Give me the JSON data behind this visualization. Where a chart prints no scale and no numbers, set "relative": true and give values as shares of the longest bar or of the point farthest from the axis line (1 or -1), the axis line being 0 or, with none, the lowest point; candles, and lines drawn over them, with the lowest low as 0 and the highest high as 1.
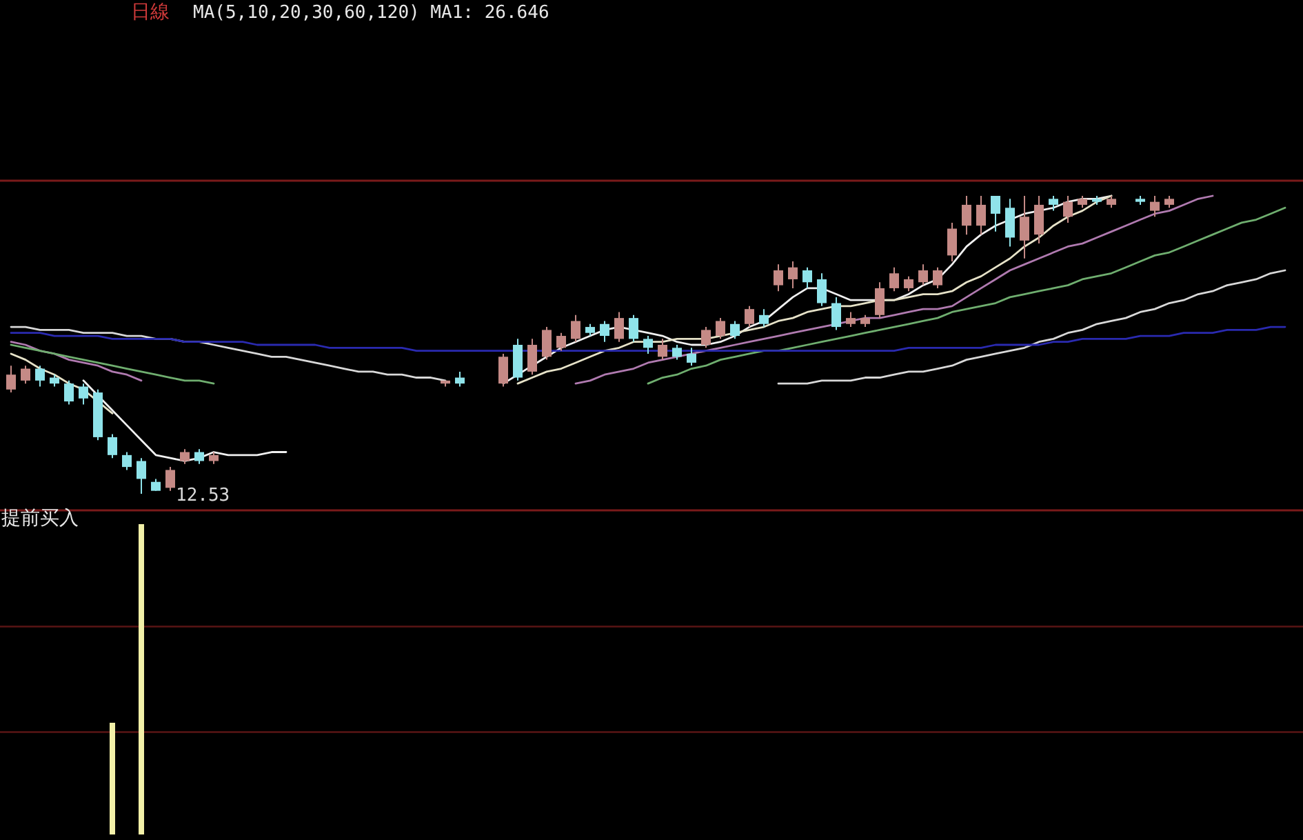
{
  "chart_data": [
    {
      "type": "candlestick",
      "title": "日線",
      "subtitle": "MA(5,10,20,30,60,120)  MA1: 26.646",
      "relative": true,
      "categories": [
        null,
        null,
        null,
        null,
        null,
        null,
        null,
        null,
        null,
        null,
        null,
        null,
        null,
        null,
        null,
        null,
        null,
        null,
        null,
        null,
        null,
        null,
        null,
        null,
        null,
        null,
        null,
        null,
        null,
        null,
        null,
        null,
        null,
        null,
        null,
        null,
        null,
        null,
        null,
        null,
        null,
        null,
        null,
        null,
        null,
        null,
        null,
        null,
        null,
        null,
        null,
        null,
        null,
        null,
        null,
        null,
        null,
        null,
        null,
        null,
        null,
        null,
        null,
        null,
        null,
        null,
        null,
        null,
        null,
        null,
        null,
        null,
        null,
        null,
        null,
        null,
        null,
        null,
        null,
        null,
        null,
        null,
        null,
        null,
        null,
        null,
        null,
        null,
        null
      ],
      "ohlc": [
        [
          0.35,
          0.43,
          0.34,
          0.4
        ],
        [
          0.38,
          0.43,
          0.37,
          0.42
        ],
        [
          0.42,
          0.43,
          0.36,
          0.38
        ],
        [
          0.39,
          0.4,
          0.36,
          0.37
        ],
        [
          0.37,
          0.38,
          0.3,
          0.31
        ],
        [
          0.36,
          0.37,
          0.3,
          0.32
        ],
        [
          0.34,
          0.35,
          0.18,
          0.19
        ],
        [
          0.19,
          0.2,
          0.12,
          0.13
        ],
        [
          0.13,
          0.14,
          0.08,
          0.09
        ],
        [
          0.11,
          0.12,
          0.0,
          0.05
        ],
        [
          0.04,
          0.05,
          0.01,
          0.01
        ],
        [
          0.02,
          0.09,
          0.01,
          0.08
        ],
        [
          0.11,
          0.15,
          0.1,
          0.14
        ],
        [
          0.14,
          0.15,
          0.1,
          0.11
        ],
        [
          0.11,
          0.14,
          0.1,
          0.13
        ],
        null,
        null,
        null,
        null,
        null,
        null,
        null,
        null,
        null,
        null,
        null,
        null,
        null,
        null,
        null,
        [
          0.37,
          0.38,
          0.36,
          0.38
        ],
        [
          0.39,
          0.41,
          0.36,
          0.37
        ],
        null,
        null,
        [
          0.37,
          0.47,
          0.36,
          0.46
        ],
        [
          0.5,
          0.52,
          0.38,
          0.39
        ],
        [
          0.41,
          0.52,
          0.4,
          0.5
        ],
        [
          0.46,
          0.56,
          0.45,
          0.55
        ],
        [
          0.49,
          0.54,
          0.48,
          0.53
        ],
        [
          0.52,
          0.6,
          0.51,
          0.58
        ],
        [
          0.56,
          0.57,
          0.53,
          0.54
        ],
        [
          0.57,
          0.58,
          0.51,
          0.53
        ],
        [
          0.52,
          0.61,
          0.51,
          0.59
        ],
        [
          0.59,
          0.6,
          0.51,
          0.52
        ],
        [
          0.52,
          0.53,
          0.47,
          0.49
        ],
        [
          0.46,
          0.52,
          0.45,
          0.5
        ],
        [
          0.49,
          0.5,
          0.45,
          0.46
        ],
        [
          0.47,
          0.49,
          0.43,
          0.44
        ],
        [
          0.5,
          0.56,
          0.49,
          0.55
        ],
        [
          0.53,
          0.59,
          0.52,
          0.58
        ],
        [
          0.57,
          0.58,
          0.52,
          0.53
        ],
        [
          0.57,
          0.63,
          0.56,
          0.62
        ],
        [
          0.6,
          0.62,
          0.56,
          0.57
        ],
        [
          0.7,
          0.77,
          0.68,
          0.75
        ],
        [
          0.72,
          0.78,
          0.69,
          0.76
        ],
        [
          0.75,
          0.76,
          0.69,
          0.71
        ],
        [
          0.72,
          0.74,
          0.63,
          0.64
        ],
        [
          0.64,
          0.66,
          0.55,
          0.56
        ],
        [
          0.57,
          0.61,
          0.56,
          0.59
        ],
        [
          0.57,
          0.6,
          0.56,
          0.59
        ],
        [
          0.6,
          0.71,
          0.59,
          0.69
        ],
        [
          0.69,
          0.76,
          0.68,
          0.74
        ],
        [
          0.69,
          0.73,
          0.68,
          0.72
        ],
        [
          0.71,
          0.77,
          0.7,
          0.75
        ],
        [
          0.7,
          0.76,
          0.69,
          0.75
        ],
        [
          0.8,
          0.91,
          0.78,
          0.89
        ],
        [
          0.9,
          1.0,
          0.87,
          0.97
        ],
        [
          0.9,
          1.0,
          0.87,
          0.97
        ],
        [
          1.0,
          1.0,
          0.88,
          0.94
        ],
        [
          0.96,
          0.99,
          0.83,
          0.86
        ],
        [
          0.85,
          1.0,
          0.79,
          0.93
        ],
        [
          0.87,
          1.0,
          0.84,
          0.97
        ],
        [
          0.99,
          1.0,
          0.95,
          0.97
        ],
        [
          0.93,
          1.0,
          0.91,
          0.98
        ],
        [
          0.97,
          1.0,
          0.96,
          0.99
        ],
        [
          0.99,
          1.0,
          0.97,
          0.98
        ],
        [
          0.97,
          1.0,
          0.96,
          0.99
        ],
        null,
        [
          0.99,
          1.0,
          0.97,
          0.98
        ],
        [
          0.95,
          1.0,
          0.93,
          0.98
        ],
        [
          0.97,
          1.0,
          0.96,
          0.99
        ],
        null,
        null,
        null,
        null,
        null,
        null,
        null,
        null
      ],
      "colors": [
        "#c58a86",
        "#c58a86",
        "#8fe3ea",
        "#8fe3ea",
        "#8fe3ea",
        "#8fe3ea",
        "#8fe3ea",
        "#8fe3ea",
        "#8fe3ea",
        "#8fe3ea",
        "#8fe3ea",
        "#c58a86",
        "#c58a86",
        "#8fe3ea",
        "#c58a86",
        null,
        null,
        null,
        null,
        null,
        null,
        null,
        null,
        null,
        null,
        null,
        null,
        null,
        null,
        null,
        "#c58a86",
        "#8fe3ea",
        null,
        null,
        "#c58a86",
        "#8fe3ea",
        "#c58a86",
        "#c58a86",
        "#c58a86",
        "#c58a86",
        "#8fe3ea",
        "#8fe3ea",
        "#c58a86",
        "#8fe3ea",
        "#8fe3ea",
        "#c58a86",
        "#8fe3ea",
        "#8fe3ea",
        "#c58a86",
        "#c58a86",
        "#8fe3ea",
        "#c58a86",
        "#8fe3ea",
        "#c58a86",
        "#c58a86",
        "#8fe3ea",
        "#8fe3ea",
        "#8fe3ea",
        "#c58a86",
        "#c58a86",
        "#c58a86",
        "#c58a86",
        "#c58a86",
        "#c58a86",
        "#c58a86",
        "#c58a86",
        "#c58a86",
        "#c58a86",
        "#8fe3ea",
        "#8fe3ea",
        "#c58a86",
        "#c58a86",
        "#8fe3ea",
        "#c58a86",
        "#c58a86",
        "#8fe3ea",
        "#c58a86",
        null,
        "#8fe3ea",
        "#c58a86",
        "#c58a86",
        null,
        null,
        null,
        null,
        null,
        null,
        null,
        null
      ],
      "series": [
        {
          "type": "line",
          "color": "#f0f0f0",
          "values": [
            null,
            null,
            null,
            null,
            null,
            0.38,
            0.33,
            0.28,
            0.23,
            0.18,
            0.13,
            0.12,
            0.11,
            0.12,
            0.14,
            0.13,
            0.13,
            0.13,
            0.14,
            0.14,
            null,
            null,
            null,
            null,
            null,
            null,
            null,
            null,
            null,
            null,
            null,
            null,
            null,
            null,
            0.37,
            0.4,
            0.43,
            0.46,
            0.49,
            0.51,
            0.53,
            0.55,
            0.56,
            0.55,
            0.54,
            0.53,
            0.51,
            0.5,
            0.5,
            0.51,
            0.53,
            0.56,
            0.58,
            0.62,
            0.66,
            0.69,
            0.69,
            0.67,
            0.65,
            0.65,
            0.65,
            0.65,
            0.67,
            0.7,
            0.72,
            0.77,
            0.83,
            0.87,
            0.9,
            0.92,
            0.94,
            0.95,
            0.96,
            0.98,
            0.99,
            0.99,
            1.0,
            null,
            null,
            null,
            null,
            null,
            null,
            null,
            null,
            null,
            null,
            null,
            null
          ]
        },
        {
          "type": "line",
          "color": "#e6e2c8",
          "values": [
            0.47,
            0.45,
            0.42,
            0.4,
            0.37,
            0.35,
            0.31,
            0.27,
            null,
            null,
            null,
            null,
            null,
            null,
            null,
            null,
            null,
            null,
            null,
            null,
            null,
            null,
            null,
            null,
            null,
            null,
            null,
            null,
            null,
            null,
            null,
            null,
            null,
            null,
            null,
            0.37,
            0.39,
            0.41,
            0.42,
            0.44,
            0.46,
            0.48,
            0.49,
            0.51,
            0.51,
            0.51,
            0.52,
            0.52,
            0.52,
            0.53,
            0.54,
            0.55,
            0.56,
            0.58,
            0.59,
            0.61,
            0.62,
            0.63,
            0.63,
            0.64,
            0.65,
            0.65,
            0.66,
            0.67,
            0.67,
            0.68,
            0.71,
            0.73,
            0.76,
            0.79,
            0.83,
            0.86,
            0.9,
            0.93,
            0.95,
            0.98,
            1.0,
            null,
            null,
            null,
            null,
            null,
            null,
            null,
            null,
            null,
            null,
            null,
            null
          ]
        },
        {
          "type": "line",
          "color": "#b07ab0",
          "values": [
            0.51,
            0.5,
            0.48,
            0.47,
            0.45,
            0.44,
            0.43,
            0.41,
            0.4,
            0.38,
            null,
            null,
            null,
            null,
            null,
            null,
            null,
            null,
            null,
            null,
            null,
            null,
            null,
            null,
            null,
            null,
            null,
            null,
            null,
            null,
            null,
            null,
            null,
            null,
            null,
            null,
            null,
            null,
            null,
            0.37,
            0.38,
            0.4,
            0.41,
            0.42,
            0.44,
            0.45,
            0.46,
            0.47,
            0.48,
            0.49,
            0.5,
            0.51,
            0.52,
            0.53,
            0.54,
            0.55,
            0.56,
            0.57,
            0.58,
            0.59,
            0.59,
            0.6,
            0.61,
            0.62,
            0.62,
            0.63,
            0.66,
            0.69,
            0.72,
            0.75,
            0.77,
            0.79,
            0.81,
            0.83,
            0.84,
            0.86,
            0.88,
            0.9,
            0.92,
            0.94,
            0.95,
            0.97,
            0.99,
            1.0,
            null,
            null,
            null,
            null,
            null
          ]
        },
        {
          "type": "line",
          "color": "#6fae6f",
          "values": [
            0.5,
            0.49,
            0.48,
            0.47,
            0.46,
            0.45,
            0.44,
            0.43,
            0.42,
            0.41,
            0.4,
            0.39,
            0.38,
            0.38,
            0.37,
            null,
            null,
            null,
            null,
            null,
            null,
            null,
            null,
            null,
            null,
            null,
            null,
            null,
            null,
            null,
            null,
            null,
            null,
            null,
            null,
            null,
            null,
            null,
            null,
            null,
            null,
            null,
            null,
            null,
            0.37,
            0.39,
            0.4,
            0.42,
            0.43,
            0.45,
            0.46,
            0.47,
            0.48,
            0.48,
            0.49,
            0.5,
            0.51,
            0.52,
            0.53,
            0.54,
            0.55,
            0.56,
            0.57,
            0.58,
            0.59,
            0.61,
            0.62,
            0.63,
            0.64,
            0.66,
            0.67,
            0.68,
            0.69,
            0.7,
            0.72,
            0.73,
            0.74,
            0.76,
            0.78,
            0.8,
            0.81,
            0.83,
            0.85,
            0.87,
            0.89,
            0.91,
            0.92,
            0.94,
            0.96
          ]
        },
        {
          "type": "line",
          "color": "#d8d8d8",
          "values": [
            0.56,
            0.56,
            0.55,
            0.55,
            0.55,
            0.54,
            0.54,
            0.54,
            0.53,
            0.53,
            0.52,
            0.52,
            0.51,
            0.51,
            0.5,
            0.49,
            0.48,
            0.47,
            0.46,
            0.46,
            0.45,
            0.44,
            0.43,
            0.42,
            0.41,
            0.41,
            0.4,
            0.4,
            0.39,
            0.39,
            0.38,
            null,
            null,
            null,
            null,
            null,
            null,
            null,
            null,
            null,
            null,
            null,
            null,
            null,
            null,
            null,
            null,
            null,
            null,
            null,
            null,
            null,
            null,
            0.37,
            0.37,
            0.37,
            0.38,
            0.38,
            0.38,
            0.39,
            0.39,
            0.4,
            0.41,
            0.41,
            0.42,
            0.43,
            0.45,
            0.46,
            0.47,
            0.48,
            0.49,
            0.51,
            0.52,
            0.54,
            0.55,
            0.57,
            0.58,
            0.59,
            0.61,
            0.62,
            0.64,
            0.65,
            0.67,
            0.68,
            0.7,
            0.71,
            0.72,
            0.74,
            0.75
          ]
        },
        {
          "type": "line",
          "color": "#2a2ab0",
          "values": [
            0.54,
            0.54,
            0.54,
            0.53,
            0.53,
            0.53,
            0.53,
            0.52,
            0.52,
            0.52,
            0.52,
            0.52,
            0.51,
            0.51,
            0.51,
            0.51,
            0.51,
            0.5,
            0.5,
            0.5,
            0.5,
            0.5,
            0.49,
            0.49,
            0.49,
            0.49,
            0.49,
            0.49,
            0.48,
            0.48,
            0.48,
            0.48,
            0.48,
            0.48,
            0.48,
            0.48,
            0.48,
            0.48,
            0.48,
            0.48,
            0.48,
            0.48,
            0.48,
            0.48,
            0.48,
            0.48,
            0.48,
            0.48,
            0.48,
            0.48,
            0.48,
            0.48,
            0.48,
            0.48,
            0.48,
            0.48,
            0.48,
            0.48,
            0.48,
            0.48,
            0.48,
            0.48,
            0.49,
            0.49,
            0.49,
            0.49,
            0.49,
            0.49,
            0.5,
            0.5,
            0.5,
            0.5,
            0.51,
            0.51,
            0.52,
            0.52,
            0.52,
            0.52,
            0.53,
            0.53,
            0.53,
            0.54,
            0.54,
            0.54,
            0.55,
            0.55,
            0.55,
            0.56,
            0.56
          ]
        }
      ],
      "annotations": [
        "12.53"
      ]
    },
    {
      "type": "bar",
      "title": "提前买入",
      "relative": true,
      "color": "#f2f0a8",
      "categories": [
        null,
        null,
        null,
        null,
        null,
        null,
        null,
        null,
        null,
        null,
        null,
        null,
        null,
        null,
        null,
        null,
        null,
        null,
        null,
        null,
        null,
        null,
        null,
        null,
        null,
        null,
        null,
        null,
        null,
        null,
        null,
        null,
        null,
        null,
        null,
        null,
        null,
        null,
        null,
        null,
        null,
        null,
        null,
        null,
        null,
        null,
        null,
        null,
        null,
        null,
        null,
        null,
        null,
        null,
        null,
        null,
        null,
        null,
        null,
        null,
        null,
        null,
        null,
        null,
        null,
        null,
        null,
        null,
        null,
        null,
        null,
        null,
        null,
        null,
        null,
        null,
        null,
        null,
        null,
        null,
        null,
        null,
        null,
        null,
        null,
        null,
        null,
        null,
        null
      ],
      "values": [
        null,
        null,
        null,
        null,
        null,
        null,
        null,
        0.36,
        null,
        1.0,
        null,
        null,
        null,
        null,
        null,
        null,
        null,
        null,
        null,
        null,
        null,
        null,
        null,
        null,
        null,
        null,
        null,
        null,
        null,
        null,
        null,
        null,
        null,
        null,
        null,
        null,
        null,
        null,
        null,
        null,
        null,
        null,
        null,
        null,
        null,
        null,
        null,
        null,
        null,
        null,
        null,
        null,
        null,
        null,
        null,
        null,
        null,
        null,
        null,
        null,
        null,
        null,
        null,
        null,
        null,
        null,
        null,
        null,
        null,
        null,
        null,
        null,
        null,
        null,
        null,
        null,
        null,
        null,
        null,
        null,
        null,
        null,
        null,
        null,
        null,
        null,
        null,
        null,
        null
      ],
      "ref_lines": [
        {
          "axis": "y",
          "value": 0.67,
          "color": "#5a1414"
        },
        {
          "axis": "y",
          "value": 0.33,
          "color": "#5a1414"
        }
      ]
    }
  ]
}
